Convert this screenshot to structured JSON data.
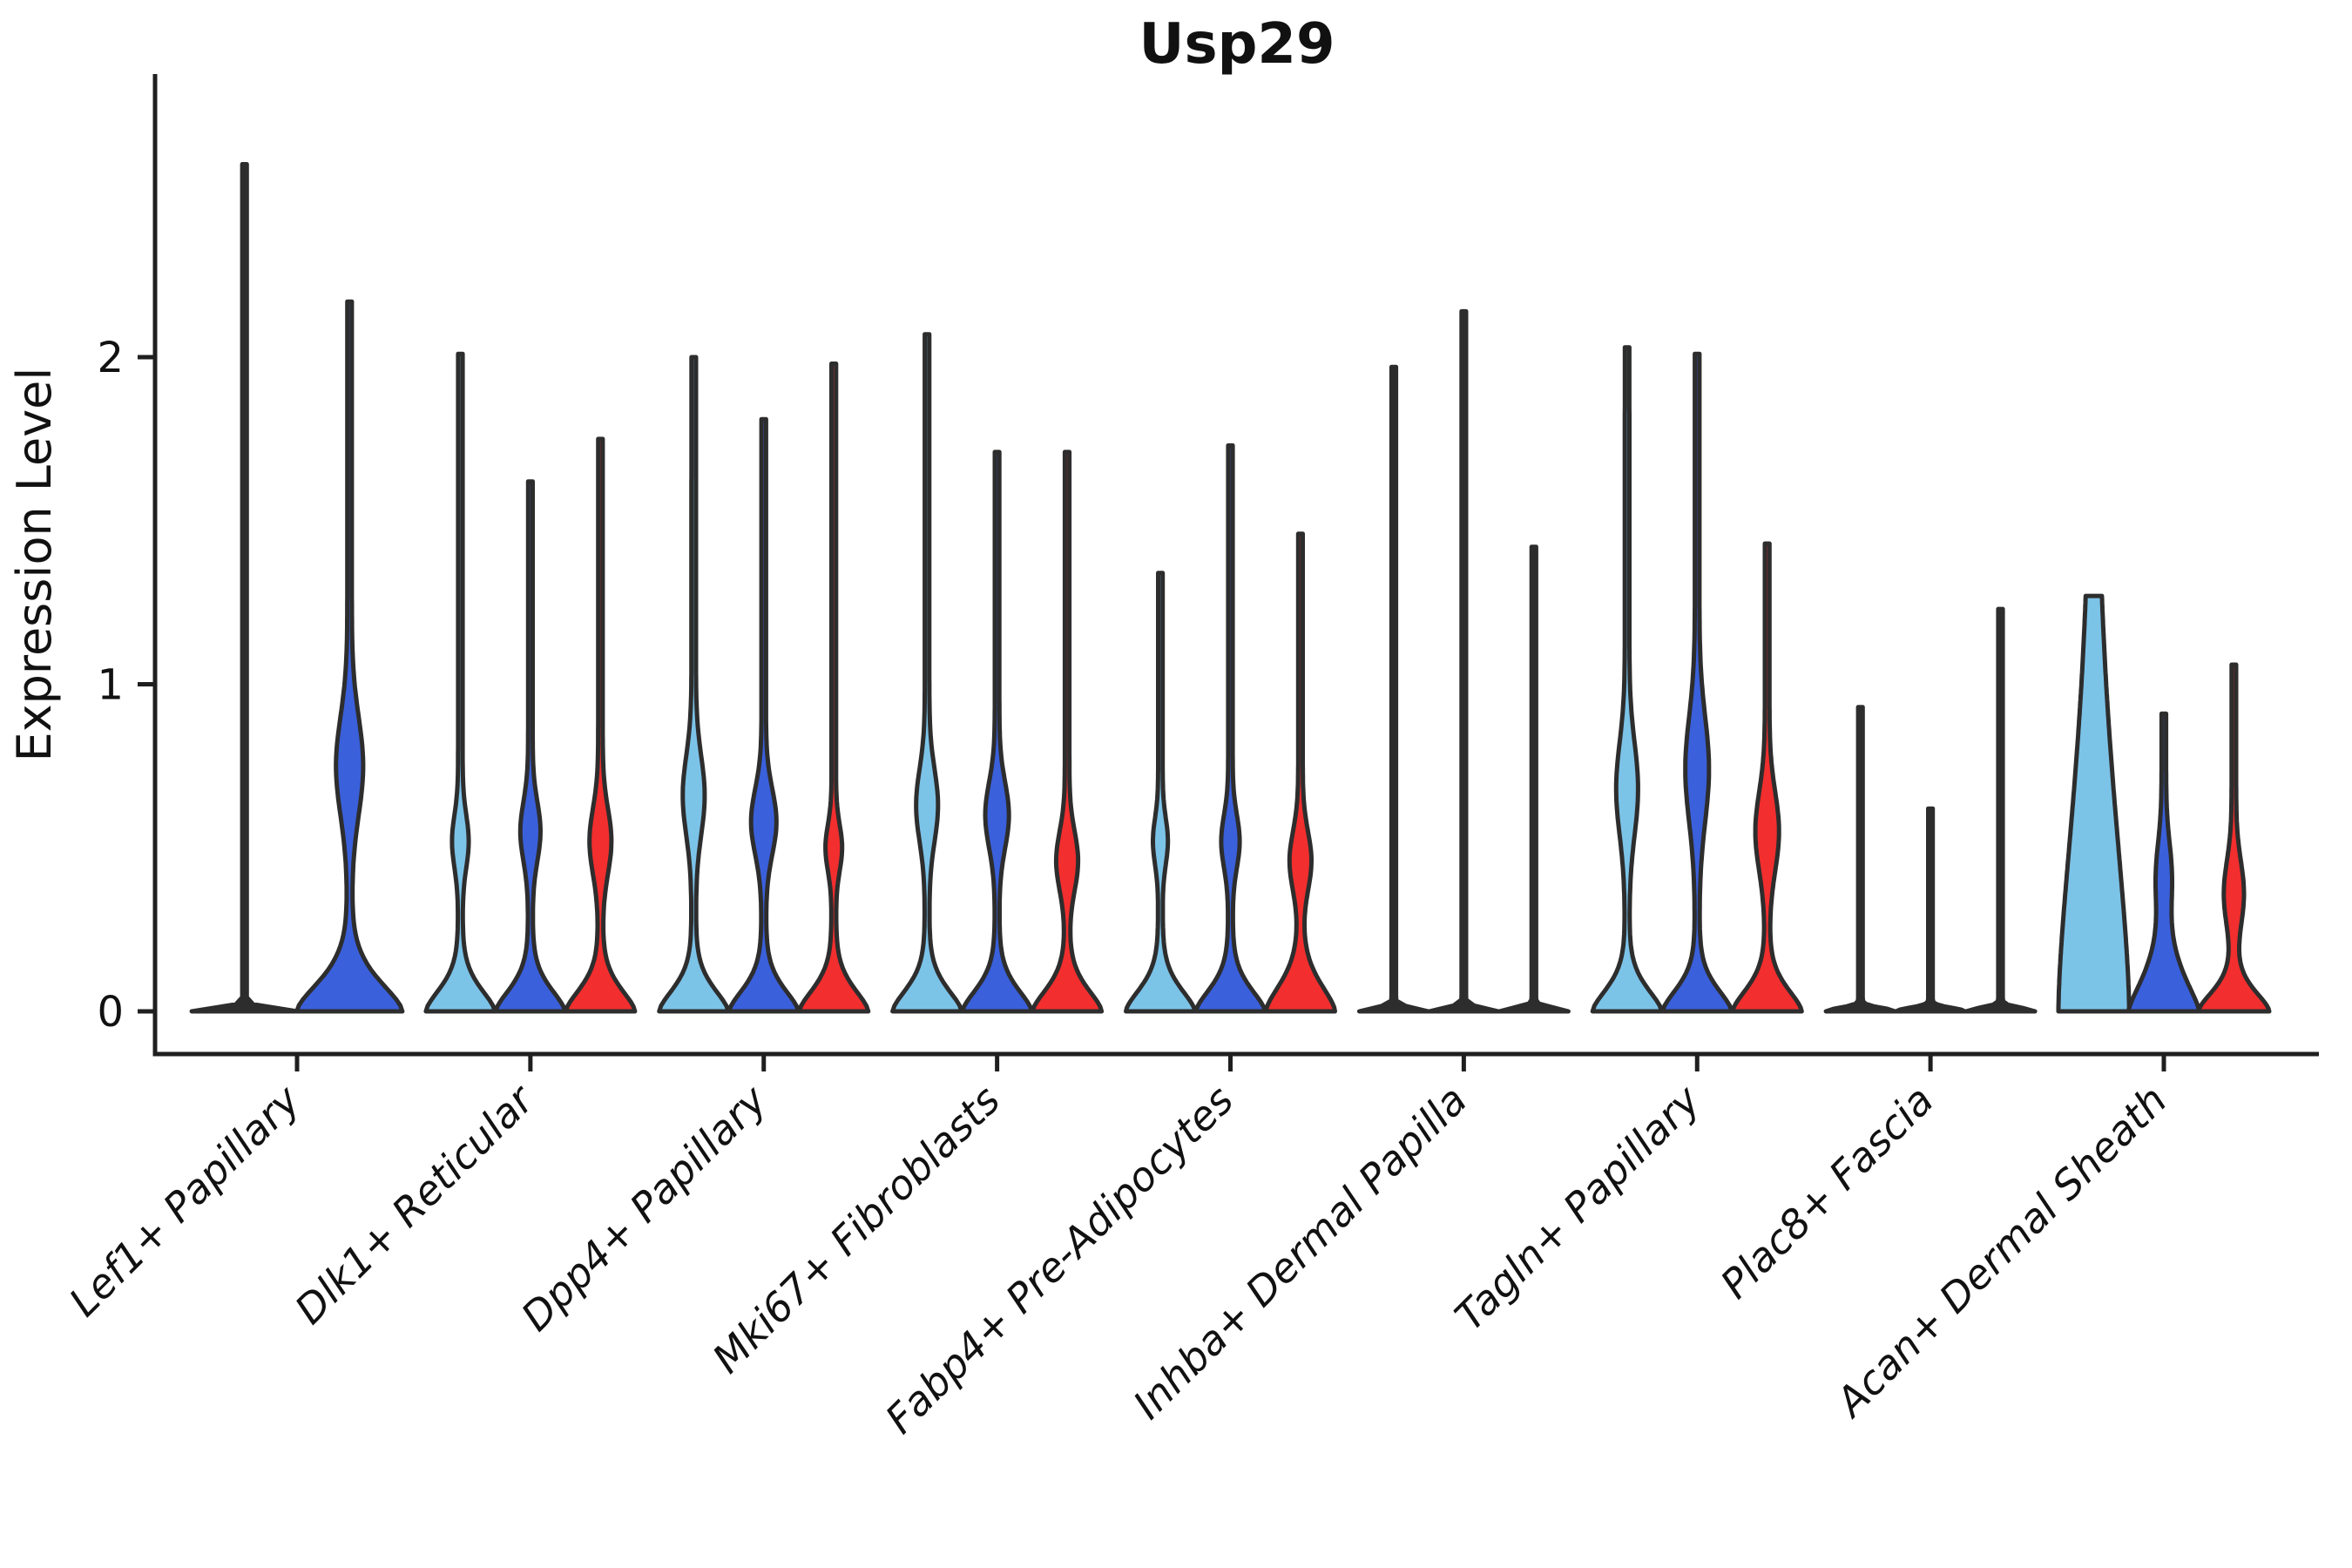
{
  "figure": {
    "title": "Usp29",
    "ylabel": "Expression Level"
  },
  "chart_data": {
    "type": "violin",
    "title": "Usp29",
    "xlabel": "",
    "ylabel": "Expression Level",
    "ylim": [
      0,
      2.86
    ],
    "yticks": [
      0,
      1,
      2
    ],
    "grid": false,
    "legend": null,
    "palette": {
      "light_blue": "#7CC3E8",
      "dark_blue": "#3A60DB",
      "red": "#F22E2E",
      "outline": "#2D2D2D",
      "axis": "#1F1F1F"
    },
    "categories": [
      "Lef1+ Papillary",
      "Dlk1+ Reticular",
      "Dpp4+ Papillary",
      "Mki67+ Fibroblasts",
      "Fabp4+ Pre-Adipocytes",
      "Inhba+ Dermal Papilla",
      "Tagln+ Papillary",
      "Plac8+ Fascia",
      "Acan+ Dermal Sheath"
    ],
    "groups": [
      {
        "label": "Lef1+ Papillary",
        "violins": [
          {
            "color": "light_blue",
            "kind": "line",
            "max": 2.59,
            "bulge": null,
            "base": {
              "amp": 58,
              "sd": 0.015,
              "p": 2.0
            }
          },
          {
            "color": "dark_blue",
            "kind": "violin",
            "max": 2.17,
            "bulge": {
              "center": 0.75,
              "sd": 0.15,
              "amp": 13
            },
            "base": {
              "amp": 58,
              "sd": 0.13,
              "p": 1.6
            }
          }
        ]
      },
      {
        "label": "Dlk1+ Reticular",
        "violins": [
          {
            "color": "light_blue",
            "kind": "violin",
            "max": 2.01,
            "bulge": {
              "center": 0.52,
              "sd": 0.08,
              "amp": 7
            },
            "base": {
              "amp": 37,
              "sd": 0.1,
              "p": 1.6
            }
          },
          {
            "color": "dark_blue",
            "kind": "violin",
            "max": 1.62,
            "bulge": {
              "center": 0.55,
              "sd": 0.09,
              "amp": 9
            },
            "base": {
              "amp": 37,
              "sd": 0.1,
              "p": 1.6
            }
          },
          {
            "color": "red",
            "kind": "violin",
            "max": 1.75,
            "bulge": {
              "center": 0.52,
              "sd": 0.1,
              "amp": 10
            },
            "base": {
              "amp": 37,
              "sd": 0.1,
              "p": 1.6
            }
          }
        ]
      },
      {
        "label": "Dpp4+ Papillary",
        "violins": [
          {
            "color": "light_blue",
            "kind": "violin",
            "max": 2.0,
            "bulge": {
              "center": 0.66,
              "sd": 0.12,
              "amp": 10
            },
            "base": {
              "amp": 37,
              "sd": 0.1,
              "p": 1.6
            }
          },
          {
            "color": "dark_blue",
            "kind": "violin",
            "max": 1.81,
            "bulge": {
              "center": 0.58,
              "sd": 0.1,
              "amp": 12
            },
            "base": {
              "amp": 37,
              "sd": 0.1,
              "p": 1.6
            }
          },
          {
            "color": "red",
            "kind": "violin",
            "max": 1.98,
            "bulge": {
              "center": 0.5,
              "sd": 0.07,
              "amp": 7
            },
            "base": {
              "amp": 37,
              "sd": 0.1,
              "p": 1.6
            }
          }
        ]
      },
      {
        "label": "Mki67+ Fibroblasts",
        "violins": [
          {
            "color": "light_blue",
            "kind": "violin",
            "max": 2.07,
            "bulge": {
              "center": 0.63,
              "sd": 0.11,
              "amp": 10
            },
            "base": {
              "amp": 37,
              "sd": 0.1,
              "p": 1.6
            }
          },
          {
            "color": "dark_blue",
            "kind": "violin",
            "max": 1.71,
            "bulge": {
              "center": 0.6,
              "sd": 0.1,
              "amp": 11
            },
            "base": {
              "amp": 37,
              "sd": 0.1,
              "p": 1.6
            }
          },
          {
            "color": "red",
            "kind": "violin",
            "max": 1.71,
            "bulge": {
              "center": 0.46,
              "sd": 0.09,
              "amp": 10
            },
            "base": {
              "amp": 37,
              "sd": 0.1,
              "p": 1.6
            }
          }
        ]
      },
      {
        "label": "Fabp4+ Pre-Adipocytes",
        "violins": [
          {
            "color": "light_blue",
            "kind": "violin",
            "max": 1.34,
            "bulge": {
              "center": 0.52,
              "sd": 0.07,
              "amp": 6
            },
            "base": {
              "amp": 37,
              "sd": 0.1,
              "p": 1.6
            }
          },
          {
            "color": "dark_blue",
            "kind": "violin",
            "max": 1.73,
            "bulge": {
              "center": 0.52,
              "sd": 0.08,
              "amp": 8
            },
            "base": {
              "amp": 37,
              "sd": 0.1,
              "p": 1.6
            }
          },
          {
            "color": "red",
            "kind": "violin",
            "max": 1.46,
            "bulge": {
              "center": 0.46,
              "sd": 0.09,
              "amp": 10
            },
            "base": {
              "amp": 37,
              "sd": 0.12,
              "p": 1.6
            }
          }
        ]
      },
      {
        "label": "Inhba+ Dermal Papilla",
        "violins": [
          {
            "color": "light_blue",
            "kind": "line",
            "max": 1.97,
            "bulge": null,
            "base": {
              "amp": 37,
              "sd": 0.015,
              "p": 2.0
            }
          },
          {
            "color": "dark_blue",
            "kind": "line",
            "max": 2.14,
            "bulge": null,
            "base": {
              "amp": 37,
              "sd": 0.015,
              "p": 2.0
            }
          },
          {
            "color": "red",
            "kind": "line",
            "max": 1.42,
            "bulge": null,
            "base": {
              "amp": 37,
              "sd": 0.015,
              "p": 2.0
            }
          }
        ]
      },
      {
        "label": "Tagln+ Papillary",
        "violins": [
          {
            "color": "light_blue",
            "kind": "violin",
            "max": 2.03,
            "bulge": {
              "center": 0.68,
              "sd": 0.14,
              "amp": 10
            },
            "base": {
              "amp": 37,
              "sd": 0.1,
              "p": 1.6
            }
          },
          {
            "color": "dark_blue",
            "kind": "violin",
            "max": 2.01,
            "bulge": {
              "center": 0.74,
              "sd": 0.16,
              "amp": 11
            },
            "base": {
              "amp": 37,
              "sd": 0.1,
              "p": 1.6
            }
          },
          {
            "color": "red",
            "kind": "violin",
            "max": 1.43,
            "bulge": {
              "center": 0.55,
              "sd": 0.12,
              "amp": 11
            },
            "base": {
              "amp": 37,
              "sd": 0.1,
              "p": 1.6
            }
          }
        ]
      },
      {
        "label": "Plac8+ Fascia",
        "violins": [
          {
            "color": "light_blue",
            "kind": "line",
            "max": 0.93,
            "bulge": null,
            "base": {
              "amp": 37,
              "sd": 0.015,
              "p": 2.0
            }
          },
          {
            "color": "dark_blue",
            "kind": "line",
            "max": 0.62,
            "bulge": null,
            "base": {
              "amp": 37,
              "sd": 0.015,
              "p": 2.0
            }
          },
          {
            "color": "red",
            "kind": "line",
            "max": 1.23,
            "bulge": null,
            "base": {
              "amp": 37,
              "sd": 0.015,
              "p": 2.0
            }
          }
        ]
      },
      {
        "label": "Acan+ Dermal Sheath",
        "violins": [
          {
            "color": "light_blue",
            "kind": "cone",
            "max": 1.27,
            "bulge": null,
            "base": {
              "amp": 38,
              "sd": 0.9,
              "p": 1.6
            }
          },
          {
            "color": "dark_blue",
            "kind": "violin",
            "max": 0.91,
            "bulge": {
              "center": 0.42,
              "sd": 0.1,
              "amp": 6
            },
            "base": {
              "amp": 38,
              "sd": 0.16,
              "p": 1.4
            }
          },
          {
            "color": "red",
            "kind": "violin",
            "max": 1.06,
            "bulge": {
              "center": 0.36,
              "sd": 0.1,
              "amp": 9
            },
            "base": {
              "amp": 38,
              "sd": 0.09,
              "p": 1.6
            }
          }
        ]
      }
    ]
  }
}
